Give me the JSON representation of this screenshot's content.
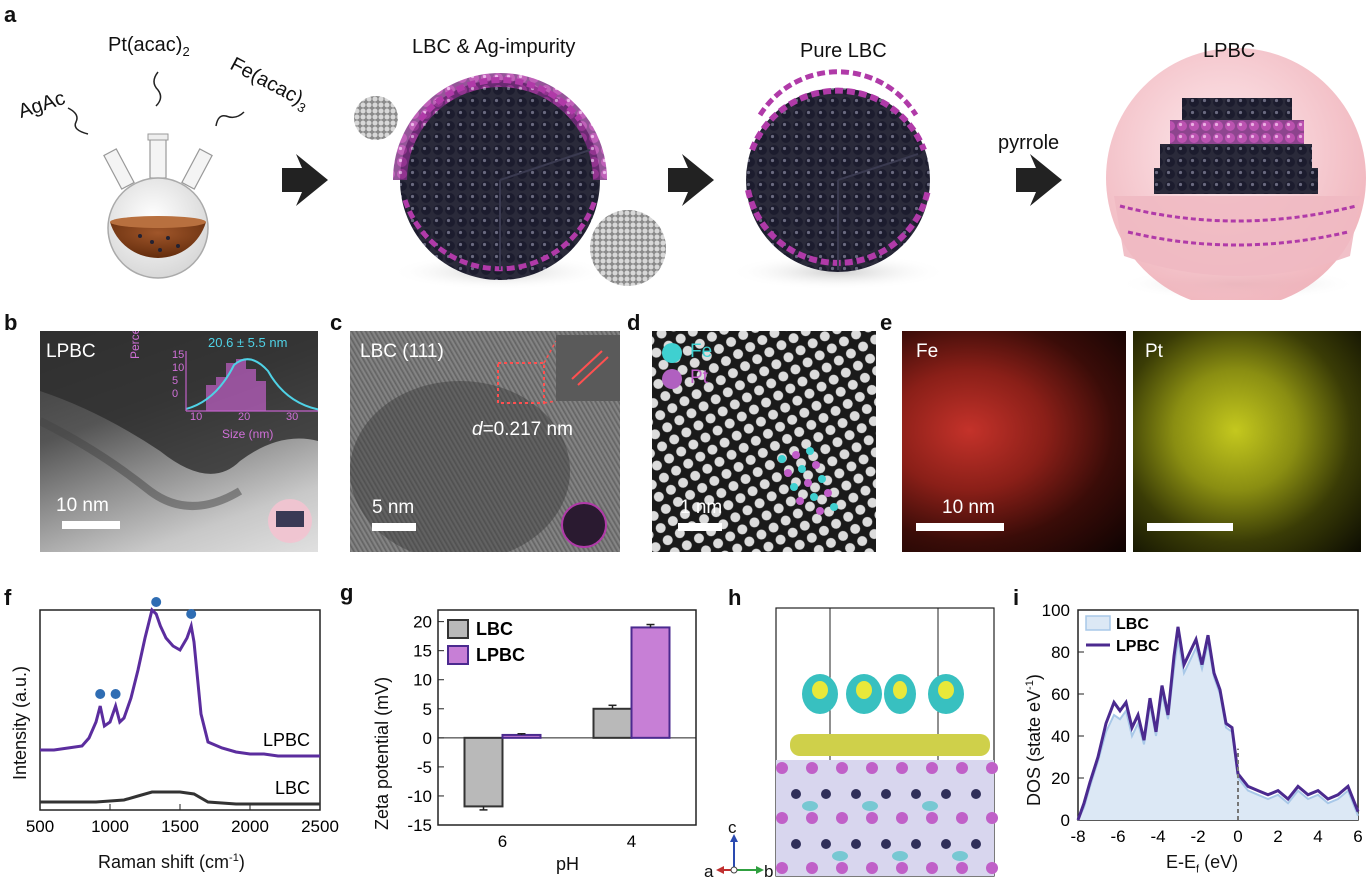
{
  "panel_labels": {
    "a": "a",
    "b": "b",
    "c": "c",
    "d": "d",
    "e": "e",
    "f": "f",
    "g": "g",
    "h": "h",
    "i": "i"
  },
  "panel_a": {
    "precursor_1": "AgAc",
    "precursor_2": "Pt(acac)",
    "precursor_2_sub": "2",
    "precursor_3": "Fe(acac)",
    "precursor_3_sub": "3",
    "stage_1": "LBC & Ag-impurity",
    "stage_2": "Pure LBC",
    "stage_3": "LPBC",
    "arrow_label": "pyrrole",
    "colors": {
      "pt_atom": "#b03aa8",
      "fe_atom": "#1c1c2e",
      "shell": "#f4c9cf",
      "liquid": "#7a3a12"
    }
  },
  "panel_b": {
    "label": "LPBC",
    "size_text": "20.6 ± 5.5 nm",
    "scale": "10 nm",
    "inset_ylabel": "Percentage (%)",
    "inset_xlabel": "Size (nm)",
    "inset_yticks": [
      "15",
      "10",
      "5",
      "0"
    ],
    "inset_xticks": [
      "10",
      "20",
      "30"
    ]
  },
  "panel_c": {
    "label": "LBC (111)",
    "d_prefix": "d",
    "d_value": "=0.217 nm",
    "scale": "5 nm"
  },
  "panel_d": {
    "legend_fe": "Fe",
    "legend_pt": "Pt",
    "scale": "1 nm"
  },
  "panel_e": {
    "map_1": "Fe",
    "map_2": "Pt",
    "scale": "10 nm"
  },
  "chart_data": [
    {
      "panel": "f",
      "type": "line",
      "xlabel": "Raman shift (cm",
      "xlabel_sup": "-1",
      "xlabel_end": ")",
      "ylabel": "Intensity (a.u.)",
      "xlim": [
        500,
        2500
      ],
      "xticks": [
        "500",
        "1000",
        "1500",
        "2000",
        "2500"
      ],
      "series": [
        {
          "name": "LPBC",
          "color": "#5b2d9e",
          "x": [
            500,
            600,
            700,
            800,
            850,
            900,
            930,
            960,
            1000,
            1040,
            1070,
            1100,
            1150,
            1200,
            1250,
            1300,
            1330,
            1360,
            1400,
            1450,
            1500,
            1550,
            1580,
            1600,
            1650,
            1700,
            1800,
            1900,
            2000,
            2100,
            2200,
            2300,
            2400,
            2500
          ],
          "y": [
            0.3,
            0.3,
            0.31,
            0.32,
            0.36,
            0.44,
            0.52,
            0.42,
            0.44,
            0.52,
            0.44,
            0.46,
            0.56,
            0.7,
            0.86,
            1.0,
            0.98,
            0.92,
            0.86,
            0.82,
            0.8,
            0.86,
            0.92,
            0.84,
            0.48,
            0.34,
            0.31,
            0.29,
            0.28,
            0.28,
            0.27,
            0.27,
            0.27,
            0.27
          ]
        },
        {
          "name": "LBC",
          "color": "#333333",
          "x": [
            500,
            700,
            900,
            1100,
            1200,
            1300,
            1400,
            1500,
            1600,
            1700,
            1900,
            2100,
            2300,
            2500
          ],
          "y": [
            0.04,
            0.04,
            0.04,
            0.05,
            0.07,
            0.09,
            0.09,
            0.09,
            0.08,
            0.04,
            0.03,
            0.03,
            0.03,
            0.03
          ]
        }
      ],
      "markers_x": [
        930,
        1040,
        1330,
        1580
      ],
      "marker_color": "#2f6db3"
    },
    {
      "panel": "g",
      "type": "bar",
      "xlabel": "pH",
      "ylabel": "Zeta potential (mV)",
      "ylim": [
        -15,
        22
      ],
      "yticks": [
        "20",
        "15",
        "10",
        "5",
        "0",
        "-5",
        "-10",
        "-15"
      ],
      "categories": [
        "6",
        "4"
      ],
      "series": [
        {
          "name": "LBC",
          "color": "#b9b9b9",
          "values": [
            -11.8,
            5.0
          ],
          "errors": [
            0.6,
            0.6
          ]
        },
        {
          "name": "LPBC",
          "color": "#c77fd6",
          "values": [
            0.5,
            19.0
          ],
          "errors": [
            0.2,
            0.5
          ]
        }
      ],
      "legend": "top-left"
    },
    {
      "panel": "i",
      "type": "line",
      "xlabel": "E-E",
      "xlabel_sub": "f",
      "xlabel_end": " (eV)",
      "ylabel": "DOS (state eV",
      "ylabel_sup": "-1",
      "ylabel_end": ")",
      "xlim": [
        -8,
        6
      ],
      "ylim": [
        0,
        100
      ],
      "xticks": [
        "-8",
        "-6",
        "-4",
        "-2",
        "0",
        "2",
        "4",
        "6"
      ],
      "yticks": [
        "0",
        "20",
        "40",
        "60",
        "80",
        "100"
      ],
      "series": [
        {
          "name": "LBC",
          "color": "#a8c8e8",
          "fill": "#dce8f5",
          "x": [
            -8,
            -7.7,
            -7.4,
            -7.0,
            -6.6,
            -6.2,
            -5.9,
            -5.6,
            -5.3,
            -5.0,
            -4.7,
            -4.4,
            -4.1,
            -3.8,
            -3.5,
            -3.2,
            -3.0,
            -2.7,
            -2.4,
            -2.1,
            -1.8,
            -1.5,
            -1.2,
            -0.9,
            -0.6,
            -0.3,
            0,
            0.5,
            1,
            1.5,
            2,
            2.5,
            3,
            3.5,
            4,
            4.5,
            5,
            5.5,
            6
          ],
          "y": [
            0,
            6,
            16,
            28,
            42,
            50,
            48,
            52,
            40,
            46,
            36,
            55,
            40,
            60,
            48,
            72,
            86,
            70,
            76,
            82,
            72,
            84,
            68,
            60,
            44,
            42,
            20,
            14,
            12,
            10,
            12,
            8,
            14,
            10,
            12,
            8,
            10,
            14,
            2
          ]
        },
        {
          "name": "LPBC",
          "color": "#4b2a8f",
          "x": [
            -8,
            -7.7,
            -7.4,
            -7.0,
            -6.6,
            -6.2,
            -5.9,
            -5.6,
            -5.3,
            -5.0,
            -4.7,
            -4.4,
            -4.1,
            -3.8,
            -3.5,
            -3.2,
            -3.0,
            -2.7,
            -2.4,
            -2.1,
            -1.8,
            -1.5,
            -1.2,
            -0.9,
            -0.6,
            -0.3,
            0,
            0.5,
            1,
            1.5,
            2,
            2.5,
            3,
            3.5,
            4,
            4.5,
            5,
            5.5,
            6
          ],
          "y": [
            0,
            8,
            18,
            30,
            46,
            56,
            52,
            56,
            44,
            50,
            38,
            58,
            42,
            64,
            50,
            78,
            92,
            74,
            80,
            86,
            74,
            88,
            70,
            62,
            46,
            44,
            22,
            16,
            14,
            12,
            14,
            10,
            16,
            12,
            14,
            10,
            12,
            16,
            4
          ]
        }
      ],
      "fermi_marker_x": 0,
      "legend": "top-left"
    }
  ],
  "panel_h": {
    "axis_c": "c",
    "axis_a": "a",
    "axis_b": "b"
  }
}
